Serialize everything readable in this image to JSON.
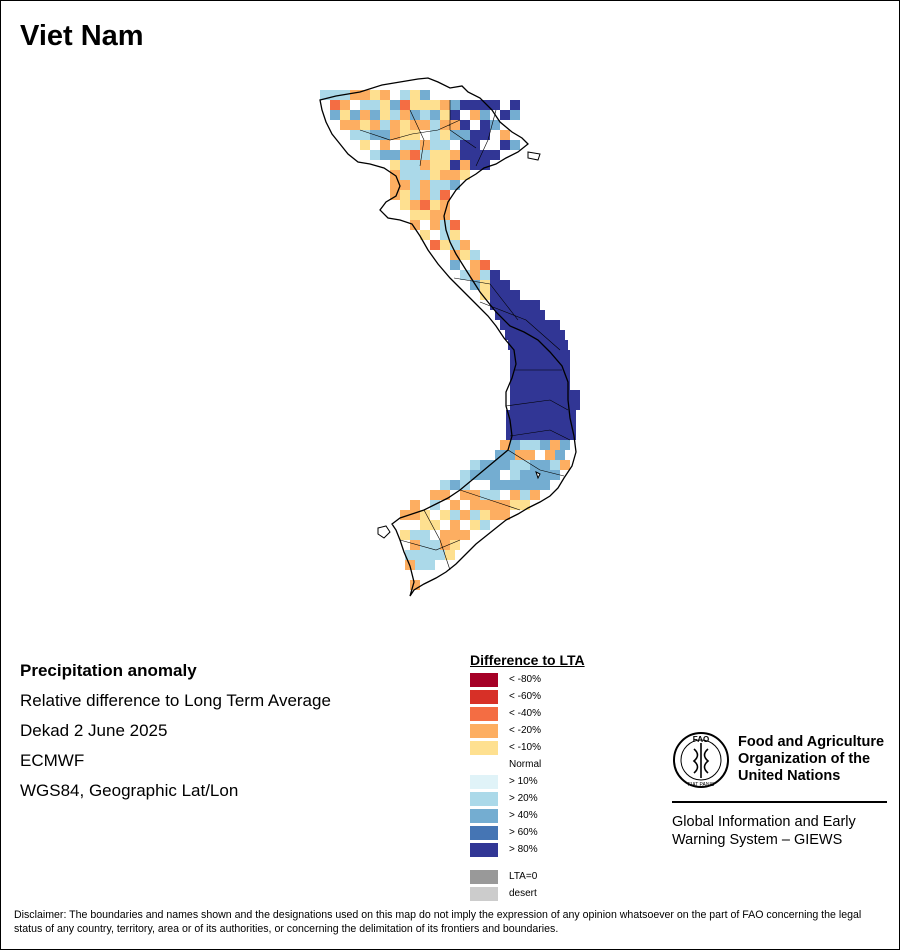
{
  "title": "Viet Nam",
  "info": {
    "heading": "Precipitation anomaly",
    "line1": "Relative difference to Long Term Average",
    "line2": "Dekad 2 June 2025",
    "line3": "ECMWF",
    "line4": "WGS84, Geographic Lat/Lon"
  },
  "legend": {
    "title": "Difference to LTA",
    "items": [
      {
        "label": "< -80%",
        "color": "#a50026"
      },
      {
        "label": "< -60%",
        "color": "#d73027"
      },
      {
        "label": "< -40%",
        "color": "#f46d43"
      },
      {
        "label": "< -20%",
        "color": "#fdae61"
      },
      {
        "label": "< -10%",
        "color": "#fee090"
      },
      {
        "label": "Normal",
        "color": "#ffffff"
      },
      {
        "label": "> 10%",
        "color": "#e0f3f8"
      },
      {
        "label": "> 20%",
        "color": "#abd9e9"
      },
      {
        "label": "> 40%",
        "color": "#74add1"
      },
      {
        "label": "> 60%",
        "color": "#4575b4"
      },
      {
        "label": "> 80%",
        "color": "#313695"
      }
    ],
    "extra": [
      {
        "label": "LTA=0",
        "color": "#999999"
      },
      {
        "label": "desert",
        "color": "#cccccc"
      }
    ]
  },
  "logo": {
    "name_line1": "Food and Agriculture",
    "name_line2": "Organization of the",
    "name_line3": "United Nations",
    "seal_text": "FAO",
    "seal_motto": "FIAT PANIS",
    "sub_line1": "Global Information and Early",
    "sub_line2": "Warning System – GIEWS"
  },
  "disclaimer": "Disclaimer: The boundaries and names shown and the designations used on this map do not imply the expression of any opinion whatsoever on the part of FAO concerning the legal status of any country, territory, area or of its authorities, or concerning the delimitation of its frontiers and boundaries."
}
